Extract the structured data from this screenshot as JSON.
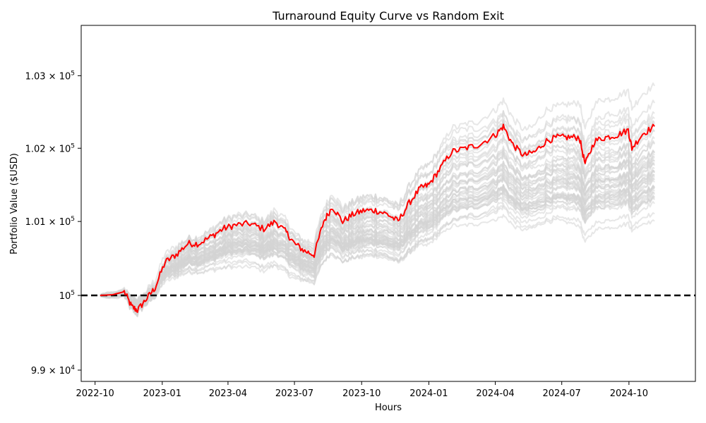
{
  "chart_data": {
    "type": "line",
    "title": "Turnaround Equity Curve vs Random Exit",
    "xlabel": "Hours",
    "ylabel": "Portfolio Value ($USD)",
    "yscale": "log",
    "xlim": [
      "2022-09-12",
      "2024-12-31"
    ],
    "ylim": [
      98850,
      103700
    ],
    "grid": false,
    "legend": "none",
    "x_ticks": [
      "2022-10",
      "2023-01",
      "2023-04",
      "2023-07",
      "2023-10",
      "2024-01",
      "2024-04",
      "2024-07",
      "2024-10"
    ],
    "y_ticks": [
      {
        "value": 99000,
        "mantissa": "9.9",
        "exponent": "4"
      },
      {
        "value": 100000,
        "mantissa": "",
        "exponent": "5"
      },
      {
        "value": 101000,
        "mantissa": "1.01",
        "exponent": "5"
      },
      {
        "value": 102000,
        "mantissa": "1.02",
        "exponent": "5"
      },
      {
        "value": 103000,
        "mantissa": "1.03",
        "exponent": "5"
      }
    ],
    "baseline": {
      "value": 100000,
      "style": "dashed",
      "color": "#000000"
    },
    "colors": {
      "turnaround": "#ff0000",
      "random": "#d3d3d3",
      "baseline": "#000000"
    },
    "random_exit_count": 50,
    "series": [
      {
        "color": "#ff0000",
        "x": [
          "2022-10-08",
          "2022-10-25",
          "2022-11-10",
          "2022-11-20",
          "2022-11-28",
          "2022-12-10",
          "2022-12-22",
          "2023-01-05",
          "2023-01-20",
          "2023-02-05",
          "2023-02-20",
          "2023-03-10",
          "2023-03-25",
          "2023-04-10",
          "2023-05-01",
          "2023-05-20",
          "2023-06-05",
          "2023-06-20",
          "2023-07-01",
          "2023-07-15",
          "2023-07-28",
          "2023-08-10",
          "2023-08-22",
          "2023-09-05",
          "2023-09-20",
          "2023-10-05",
          "2023-10-20",
          "2023-11-05",
          "2023-11-20",
          "2023-12-05",
          "2023-12-20",
          "2024-01-01",
          "2024-01-15",
          "2024-02-01",
          "2024-02-20",
          "2024-03-10",
          "2024-04-01",
          "2024-04-12",
          "2024-04-25",
          "2024-05-10",
          "2024-05-25",
          "2024-06-10",
          "2024-06-25",
          "2024-07-10",
          "2024-07-25",
          "2024-08-02",
          "2024-08-15",
          "2024-08-30",
          "2024-09-15",
          "2024-09-30",
          "2024-10-05",
          "2024-10-20",
          "2024-11-05"
        ],
        "values": [
          100000,
          100010,
          100050,
          99850,
          99800,
          99950,
          100100,
          100450,
          100550,
          100700,
          100700,
          100800,
          100900,
          100950,
          100970,
          100900,
          101000,
          100850,
          100700,
          100600,
          100550,
          101000,
          101200,
          101000,
          101100,
          101150,
          101150,
          101100,
          101000,
          101250,
          101450,
          101500,
          101700,
          101950,
          102000,
          102050,
          102180,
          102300,
          102050,
          101900,
          101950,
          102100,
          102150,
          102150,
          102150,
          101780,
          102100,
          102150,
          102180,
          102250,
          102000,
          102200,
          102300
        ]
      }
    ]
  }
}
